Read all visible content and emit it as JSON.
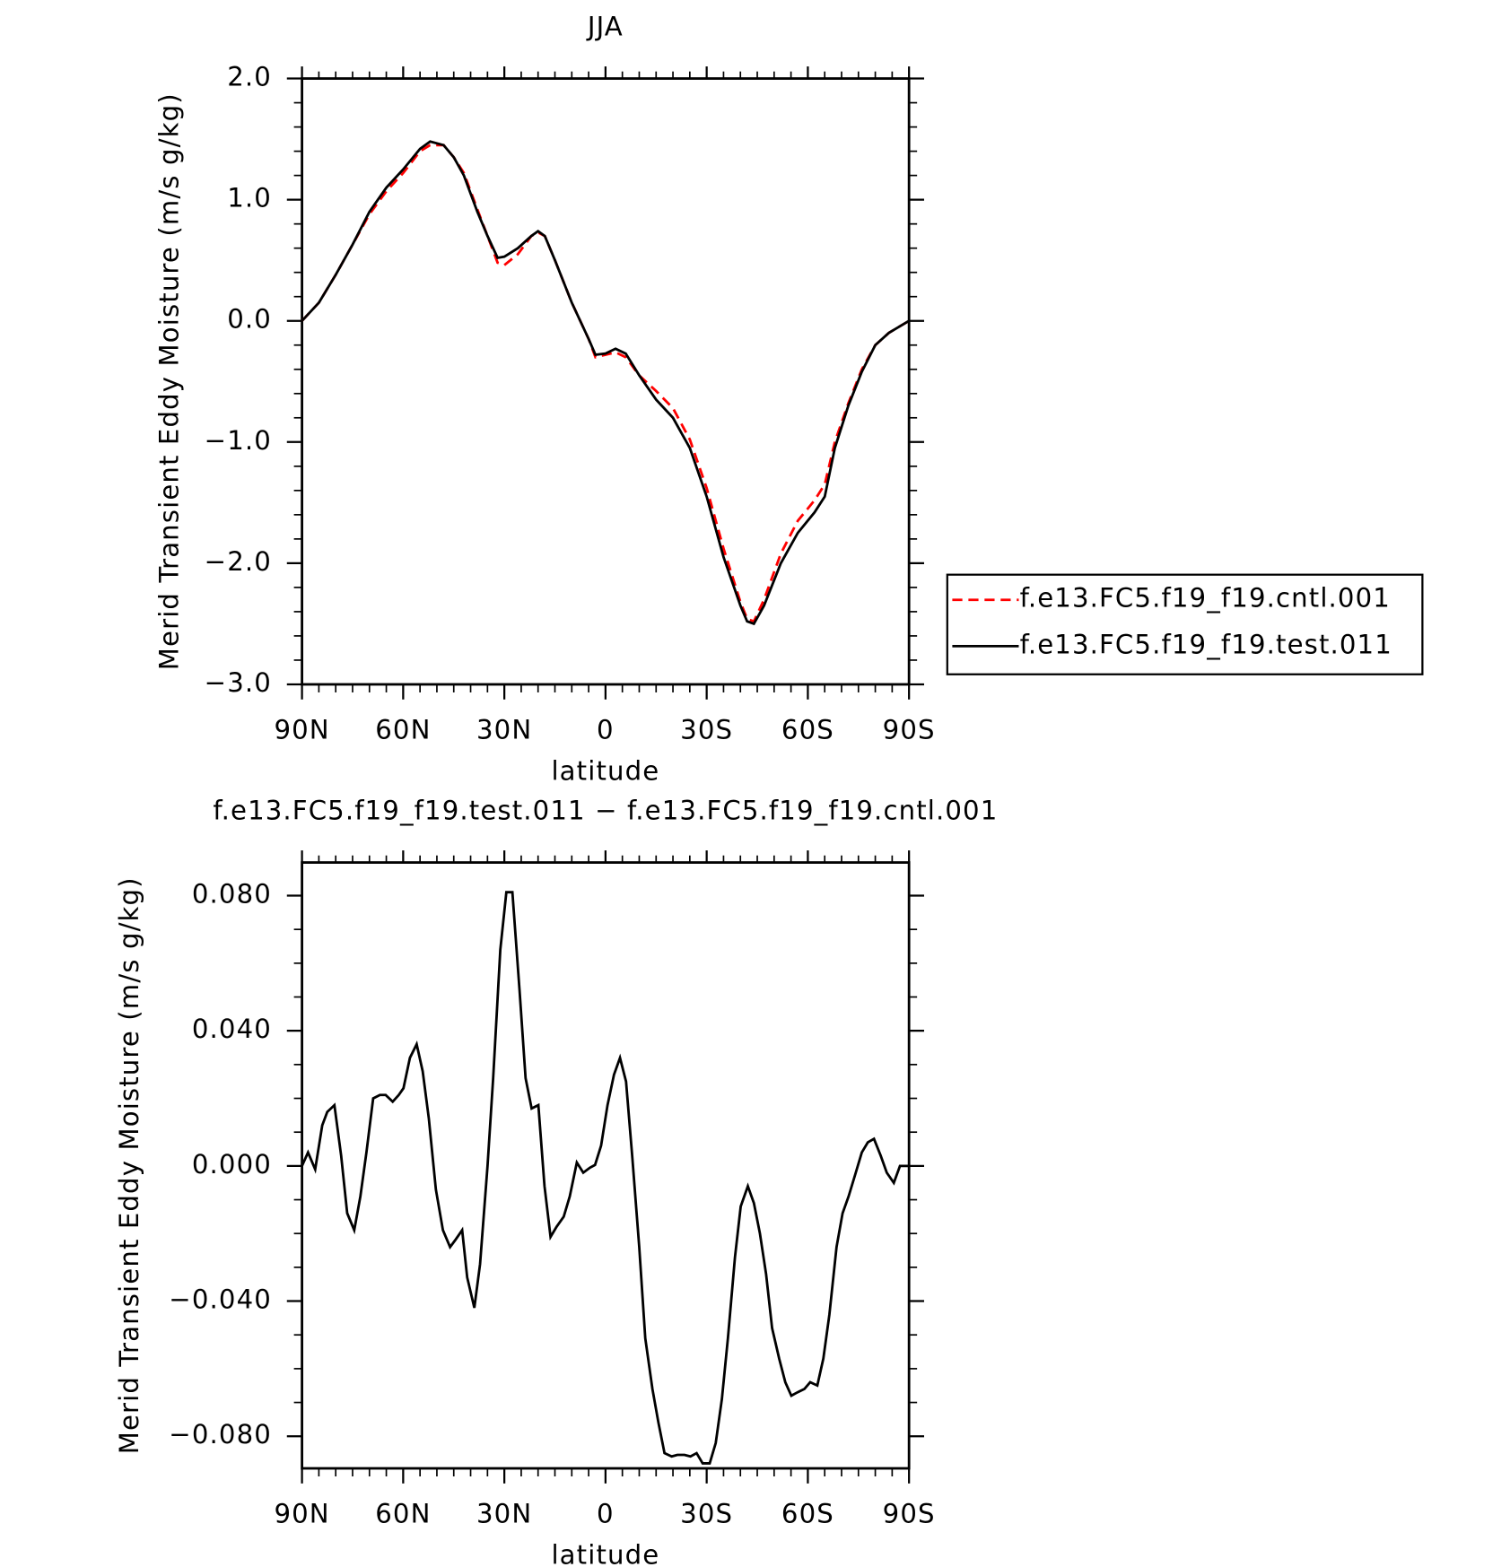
{
  "chart_data": [
    {
      "type": "line",
      "title": "JJA",
      "xlabel": "latitude",
      "ylabel": "Merid Transient Eddy Moisture (m/s g/kg)",
      "xlim": [
        90,
        -90
      ],
      "xticks": [
        {
          "value": 90,
          "label": "90N"
        },
        {
          "value": 60,
          "label": "60N"
        },
        {
          "value": 30,
          "label": "30N"
        },
        0,
        {
          "value": -30,
          "label": "30S"
        },
        {
          "value": -60,
          "label": "60S"
        },
        {
          "value": -90,
          "label": "90S"
        }
      ],
      "ylim": [
        -3,
        2
      ],
      "yticks": [
        {
          "value": 2,
          "label": "2.0"
        },
        {
          "value": 1,
          "label": "1.0"
        },
        {
          "value": 0,
          "label": "0.0"
        },
        {
          "value": -1,
          "label": "−1.0"
        },
        {
          "value": -2,
          "label": "−2.0"
        },
        {
          "value": -3,
          "label": "−3.0"
        }
      ],
      "x": [
        90,
        85,
        80,
        75,
        70,
        65,
        60,
        55,
        52,
        48,
        45,
        42,
        38,
        35,
        32,
        30,
        26,
        22,
        20,
        18,
        15,
        10,
        5,
        3,
        0,
        -3,
        -6,
        -10,
        -15,
        -20,
        -25,
        -30,
        -35,
        -40,
        -42,
        -44,
        -47,
        -52,
        -57,
        -62,
        -65,
        -68,
        -72,
        -76,
        -80,
        -84,
        -87,
        -90
      ],
      "series": [
        {
          "name": "f.e13.FC5.f19_f19.cntl.001",
          "color": "#ff0000",
          "linestyle": "dashed",
          "values": [
            0,
            0.15,
            0.38,
            0.63,
            0.88,
            1.07,
            1.22,
            1.4,
            1.45,
            1.45,
            1.35,
            1.22,
            0.92,
            0.7,
            0.48,
            0.46,
            0.55,
            0.7,
            0.73,
            0.7,
            0.5,
            0.15,
            -0.15,
            -0.3,
            -0.28,
            -0.26,
            -0.3,
            -0.45,
            -0.58,
            -0.72,
            -0.98,
            -1.38,
            -1.88,
            -2.32,
            -2.46,
            -2.48,
            -2.3,
            -1.92,
            -1.65,
            -1.48,
            -1.35,
            -1.0,
            -0.68,
            -0.4,
            -0.2,
            -0.1,
            -0.05,
            0
          ]
        },
        {
          "name": "f.e13.FC5.f19_f19.test.011",
          "color": "#000000",
          "linestyle": "solid",
          "values": [
            0,
            0.15,
            0.38,
            0.63,
            0.9,
            1.1,
            1.25,
            1.42,
            1.48,
            1.45,
            1.35,
            1.2,
            0.9,
            0.7,
            0.52,
            0.53,
            0.6,
            0.7,
            0.74,
            0.7,
            0.5,
            0.15,
            -0.15,
            -0.28,
            -0.27,
            -0.23,
            -0.27,
            -0.45,
            -0.65,
            -0.8,
            -1.05,
            -1.45,
            -1.95,
            -2.35,
            -2.48,
            -2.5,
            -2.35,
            -2.0,
            -1.75,
            -1.58,
            -1.45,
            -1.05,
            -0.7,
            -0.42,
            -0.2,
            -0.1,
            -0.05,
            0
          ]
        }
      ],
      "legend": "right"
    },
    {
      "type": "line",
      "title": "f.e13.FC5.f19_f19.test.011 − f.e13.FC5.f19_f19.cntl.001",
      "xlabel": "latitude",
      "ylabel": "Merid Transient Eddy Moisture (m/s g/kg)",
      "xlim": [
        90,
        -90
      ],
      "xticks": [
        {
          "value": 90,
          "label": "90N"
        },
        {
          "value": 60,
          "label": "60N"
        },
        {
          "value": 30,
          "label": "30N"
        },
        0,
        {
          "value": -30,
          "label": "30S"
        },
        {
          "value": -60,
          "label": "60S"
        },
        {
          "value": -90,
          "label": "90S"
        }
      ],
      "ylim": [
        -0.0895,
        0.0898
      ],
      "yticks": [
        {
          "value": 0.08,
          "label": "0.080"
        },
        {
          "value": 0.04,
          "label": "0.040"
        },
        {
          "value": 0,
          "label": "0.000"
        },
        {
          "value": -0.04,
          "label": "−0.040"
        },
        {
          "value": -0.08,
          "label": "−0.080"
        }
      ],
      "x": [
        90,
        88.2,
        86.1,
        84,
        82.5,
        80.4,
        78.4,
        76.6,
        74.5,
        72.7,
        70.9,
        68.9,
        66.9,
        65.2,
        63.1,
        61.3,
        59.9,
        58,
        56,
        54.2,
        52.4,
        50.3,
        48.2,
        46.1,
        44.6,
        42.5,
        41,
        38.9,
        37.2,
        35,
        33.3,
        31.2,
        29.4,
        27.6,
        25.5,
        23.7,
        21.9,
        19.9,
        18.1,
        16.3,
        14.5,
        12.4,
        10.6,
        8.5,
        6.6,
        4.6,
        3.1,
        1.3,
        -0.6,
        -2.5,
        -4.3,
        -6.1,
        -7.9,
        -10,
        -11.8,
        -13.9,
        -15.7,
        -17.5,
        -19.6,
        -21.3,
        -23.4,
        -25.2,
        -27,
        -28.8,
        -30.9,
        -32.7,
        -34.5,
        -36.3,
        -38.4,
        -40.1,
        -42.2,
        -44,
        -45.8,
        -47.6,
        -49.4,
        -51.5,
        -53.3,
        -55.1,
        -56.9,
        -59,
        -60.7,
        -62.8,
        -64.6,
        -66.4,
        -68.5,
        -70.3,
        -72.1,
        -74.2,
        -76,
        -77.8,
        -79.6,
        -81.6,
        -83.4,
        -85.5,
        -87.3,
        -90
      ],
      "series": [
        {
          "name": "f.e13.FC5.f19_f19.test.011",
          "color": "#000000",
          "linestyle": "solid",
          "values": [
            0,
            0.004,
            -0.001,
            0.012,
            0.016,
            0.018,
            0.003,
            -0.014,
            -0.019,
            -0.009,
            0.004,
            0.02,
            0.021,
            0.021,
            0.019,
            0.021,
            0.023,
            0.032,
            0.036,
            0.028,
            0.014,
            -0.007,
            -0.019,
            -0.024,
            -0.022,
            -0.019,
            -0.033,
            -0.042,
            -0.029,
            0,
            0.026,
            0.064,
            0.081,
            0.081,
            0.052,
            0.026,
            0.017,
            0.018,
            -0.006,
            -0.021,
            -0.018,
            -0.015,
            -0.009,
            0.001,
            -0.002,
            -0.0005,
            0.0003,
            0.006,
            0.018,
            0.027,
            0.032,
            0.025,
            0.003,
            -0.024,
            -0.051,
            -0.066,
            -0.076,
            -0.085,
            -0.086,
            -0.0855,
            -0.0855,
            -0.086,
            -0.085,
            -0.088,
            -0.088,
            -0.082,
            -0.069,
            -0.051,
            -0.027,
            -0.012,
            -0.006,
            -0.011,
            -0.02,
            -0.032,
            -0.048,
            -0.057,
            -0.064,
            -0.068,
            -0.067,
            -0.066,
            -0.064,
            -0.065,
            -0.057,
            -0.044,
            -0.024,
            -0.014,
            -0.009,
            -0.002,
            0.004,
            0.007,
            0.008,
            0.003,
            -0.002,
            -0.005,
            0,
            0
          ]
        }
      ]
    }
  ]
}
